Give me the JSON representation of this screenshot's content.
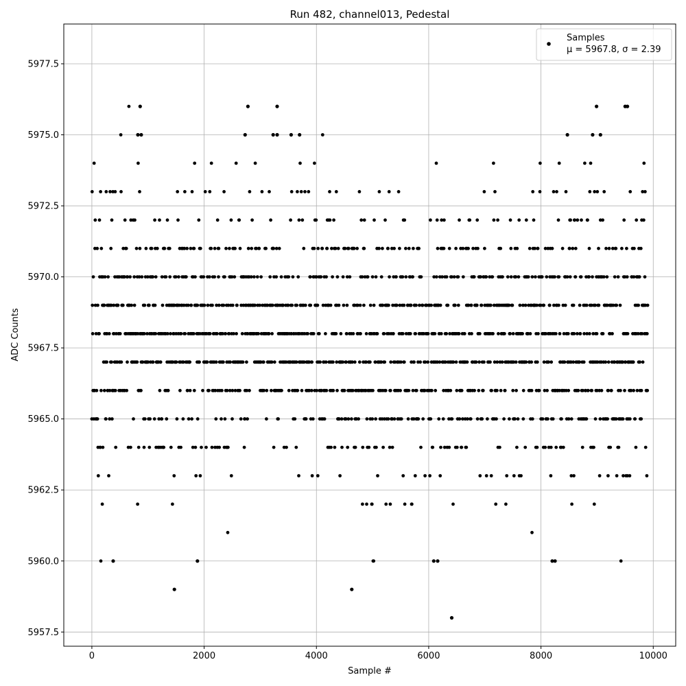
{
  "chart_data": {
    "type": "scatter",
    "title": "Run 482, channel013, Pedestal",
    "xlabel": "Sample #",
    "ylabel": "ADC Counts",
    "xlim": [
      -500,
      10400
    ],
    "ylim": [
      5957.0,
      5978.9
    ],
    "xticks": [
      0,
      2000,
      4000,
      6000,
      8000,
      10000
    ],
    "yticks": [
      5957.5,
      5960.0,
      5962.5,
      5965.0,
      5967.5,
      5970.0,
      5972.5,
      5975.0,
      5977.5
    ],
    "xtick_labels": [
      "0",
      "2000",
      "4000",
      "6000",
      "8000",
      "10000"
    ],
    "ytick_labels": [
      "5957.5",
      "5960.0",
      "5962.5",
      "5965.0",
      "5967.5",
      "5970.0",
      "5972.5",
      "5975.0",
      "5977.5"
    ],
    "grid": true,
    "legend": {
      "position": "top-right",
      "entries": [
        "Samples",
        "μ = 5967.8, σ = 2.39"
      ]
    },
    "series": [
      {
        "name": "Samples",
        "color": "#000000",
        "x_range": [
          0,
          9900
        ],
        "mean": 5967.8,
        "sigma": 2.39,
        "notable_points": [
          {
            "x": 380,
            "y": 5960
          },
          {
            "x": 1470,
            "y": 5959
          },
          {
            "x": 1880,
            "y": 5960
          },
          {
            "x": 4630,
            "y": 5959
          },
          {
            "x": 6090,
            "y": 5960
          },
          {
            "x": 6160,
            "y": 5960
          },
          {
            "x": 6410,
            "y": 5958
          },
          {
            "x": 8200,
            "y": 5960
          },
          {
            "x": 8250,
            "y": 5960
          },
          {
            "x": 860,
            "y": 5976
          },
          {
            "x": 2780,
            "y": 5976
          },
          {
            "x": 3300,
            "y": 5976
          },
          {
            "x": 8990,
            "y": 5976
          },
          {
            "x": 9500,
            "y": 5976
          },
          {
            "x": 9540,
            "y": 5976
          },
          {
            "x": 820,
            "y": 5975
          },
          {
            "x": 880,
            "y": 5975
          },
          {
            "x": 2730,
            "y": 5975
          },
          {
            "x": 3230,
            "y": 5975
          },
          {
            "x": 3300,
            "y": 5975
          },
          {
            "x": 3550,
            "y": 5975
          },
          {
            "x": 3700,
            "y": 5975
          },
          {
            "x": 8470,
            "y": 5975
          },
          {
            "x": 8920,
            "y": 5975
          },
          {
            "x": 9060,
            "y": 5975
          }
        ]
      }
    ]
  }
}
